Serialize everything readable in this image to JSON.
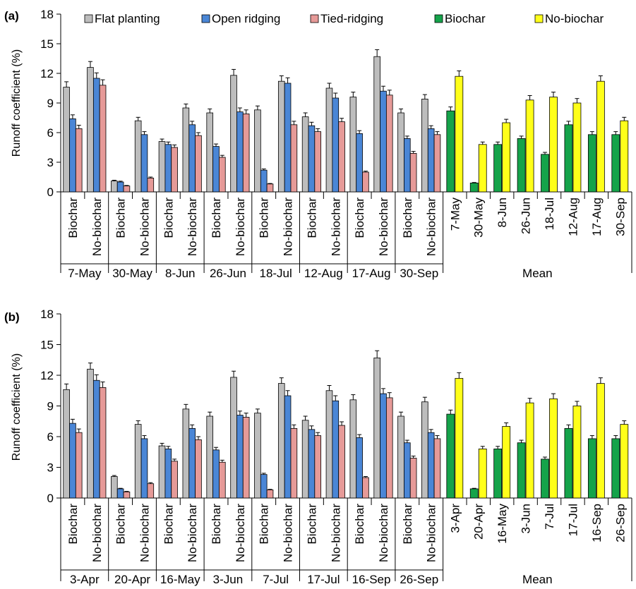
{
  "figure": {
    "legend": [
      {
        "label": "Flat planting",
        "color": "#bdbdbd"
      },
      {
        "label": "Open ridging",
        "color": "#4a86d6"
      },
      {
        "label": "Tied-ridging",
        "color": "#e69a98"
      },
      {
        "label": "Biochar",
        "color": "#15a34a"
      },
      {
        "label": "No-biochar",
        "color": "#ffff1a"
      }
    ]
  },
  "chart_data": [
    {
      "panel_label": "(a)",
      "type": "bar",
      "ylabel": "Runoff coefficient (%)",
      "ylim": [
        0,
        18
      ],
      "yticks": [
        0,
        3,
        6,
        9,
        12,
        15,
        18
      ],
      "treatment_series": [
        "Flat planting",
        "Open ridging",
        "Tied-ridging"
      ],
      "groups": [
        {
          "label": "7-May",
          "subgroups": [
            {
              "label": "Biochar",
              "values": [
                10.6,
                7.4,
                6.4
              ],
              "errors": [
                0.55,
                0.4,
                0.35
              ]
            },
            {
              "label": "No-biochar",
              "values": [
                12.6,
                11.5,
                10.8
              ],
              "errors": [
                0.6,
                0.55,
                0.55
              ]
            }
          ]
        },
        {
          "label": "30-May",
          "subgroups": [
            {
              "label": "Biochar",
              "values": [
                1.1,
                1.0,
                0.6
              ],
              "errors": [
                0.08,
                0.08,
                0.05
              ]
            },
            {
              "label": "No-biochar",
              "values": [
                7.2,
                5.8,
                1.4
              ],
              "errors": [
                0.35,
                0.3,
                0.1
              ]
            }
          ]
        },
        {
          "label": "8-Jun",
          "subgroups": [
            {
              "label": "Biochar",
              "values": [
                5.1,
                4.8,
                4.5
              ],
              "errors": [
                0.25,
                0.25,
                0.25
              ]
            },
            {
              "label": "No-biochar",
              "values": [
                8.5,
                6.8,
                5.7
              ],
              "errors": [
                0.4,
                0.35,
                0.3
              ]
            }
          ]
        },
        {
          "label": "26-Jun",
          "subgroups": [
            {
              "label": "Biochar",
              "values": [
                8.0,
                4.6,
                3.5
              ],
              "errors": [
                0.4,
                0.25,
                0.2
              ]
            },
            {
              "label": "No-biochar",
              "values": [
                11.8,
                8.1,
                7.9
              ],
              "errors": [
                0.6,
                0.4,
                0.4
              ]
            }
          ]
        },
        {
          "label": "18-Jul",
          "subgroups": [
            {
              "label": "Biochar",
              "values": [
                8.3,
                2.2,
                0.8
              ],
              "errors": [
                0.4,
                0.12,
                0.05
              ]
            },
            {
              "label": "No-biochar",
              "values": [
                11.2,
                11.0,
                6.8
              ],
              "errors": [
                0.55,
                0.55,
                0.35
              ]
            }
          ]
        },
        {
          "label": "12-Aug",
          "subgroups": [
            {
              "label": "Biochar",
              "values": [
                7.6,
                6.7,
                6.1
              ],
              "errors": [
                0.4,
                0.35,
                0.3
              ]
            },
            {
              "label": "No-biochar",
              "values": [
                10.5,
                9.5,
                7.1
              ],
              "errors": [
                0.5,
                0.5,
                0.35
              ]
            }
          ]
        },
        {
          "label": "17-Aug",
          "subgroups": [
            {
              "label": "Biochar",
              "values": [
                9.6,
                5.9,
                2.0
              ],
              "errors": [
                0.5,
                0.3,
                0.1
              ]
            },
            {
              "label": "No-biochar",
              "values": [
                13.7,
                10.2,
                9.8
              ],
              "errors": [
                0.7,
                0.5,
                0.5
              ]
            }
          ]
        },
        {
          "label": "30-Sep",
          "subgroups": [
            {
              "label": "Biochar",
              "values": [
                8.0,
                5.4,
                3.9
              ],
              "errors": [
                0.4,
                0.25,
                0.2
              ]
            },
            {
              "label": "No-biochar",
              "values": [
                9.4,
                6.4,
                5.8
              ],
              "errors": [
                0.45,
                0.3,
                0.3
              ]
            }
          ]
        }
      ],
      "mean": {
        "label": "Mean",
        "series": [
          "Biochar",
          "No-biochar"
        ],
        "categories": [
          "7-May",
          "30-May",
          "8-Jun",
          "26-Jun",
          "18-Jul",
          "12-Aug",
          "17-Aug",
          "30-Sep"
        ],
        "biochar": [
          8.2,
          0.9,
          4.8,
          5.4,
          3.8,
          6.8,
          5.8,
          5.8
        ],
        "biochar_errors": [
          0.4,
          0.05,
          0.25,
          0.25,
          0.2,
          0.35,
          0.3,
          0.3
        ],
        "no_biochar": [
          11.7,
          4.8,
          7.0,
          9.3,
          9.6,
          9.0,
          11.2,
          7.2
        ],
        "no_biochar_errors": [
          0.55,
          0.25,
          0.35,
          0.45,
          0.5,
          0.45,
          0.55,
          0.35
        ]
      }
    },
    {
      "panel_label": "(b)",
      "type": "bar",
      "ylabel": "Runoff coefficient (%)",
      "ylim": [
        0,
        18
      ],
      "yticks": [
        0,
        3,
        6,
        9,
        12,
        15,
        18
      ],
      "treatment_series": [
        "Flat planting",
        "Open ridging",
        "Tied-ridging"
      ],
      "groups": [
        {
          "label": "3-Apr",
          "subgroups": [
            {
              "label": "Biochar",
              "values": [
                10.6,
                7.3,
                6.4
              ],
              "errors": [
                0.55,
                0.4,
                0.35
              ]
            },
            {
              "label": "No-biochar",
              "values": [
                12.6,
                11.5,
                10.8
              ],
              "errors": [
                0.6,
                0.55,
                0.55
              ]
            }
          ]
        },
        {
          "label": "20-Apr",
          "subgroups": [
            {
              "label": "Biochar",
              "values": [
                2.1,
                0.9,
                0.6
              ],
              "errors": [
                0.1,
                0.05,
                0.05
              ]
            },
            {
              "label": "No-biochar",
              "values": [
                7.2,
                5.8,
                1.4
              ],
              "errors": [
                0.35,
                0.3,
                0.1
              ]
            }
          ]
        },
        {
          "label": "16-May",
          "subgroups": [
            {
              "label": "Biochar",
              "values": [
                5.1,
                4.8,
                3.6
              ],
              "errors": [
                0.25,
                0.25,
                0.2
              ]
            },
            {
              "label": "No-biochar",
              "values": [
                8.7,
                6.8,
                5.7
              ],
              "errors": [
                0.45,
                0.35,
                0.3
              ]
            }
          ]
        },
        {
          "label": "3-Jun",
          "subgroups": [
            {
              "label": "Biochar",
              "values": [
                8.0,
                4.7,
                3.5
              ],
              "errors": [
                0.4,
                0.25,
                0.2
              ]
            },
            {
              "label": "No-biochar",
              "values": [
                11.8,
                8.1,
                7.9
              ],
              "errors": [
                0.6,
                0.4,
                0.4
              ]
            }
          ]
        },
        {
          "label": "7-Jul",
          "subgroups": [
            {
              "label": "Biochar",
              "values": [
                8.3,
                2.3,
                0.8
              ],
              "errors": [
                0.4,
                0.12,
                0.05
              ]
            },
            {
              "label": "No-biochar",
              "values": [
                11.2,
                10.0,
                6.8
              ],
              "errors": [
                0.55,
                0.5,
                0.35
              ]
            }
          ]
        },
        {
          "label": "17-Jul",
          "subgroups": [
            {
              "label": "Biochar",
              "values": [
                7.6,
                6.7,
                6.1
              ],
              "errors": [
                0.4,
                0.35,
                0.3
              ]
            },
            {
              "label": "No-biochar",
              "values": [
                10.5,
                9.5,
                7.1
              ],
              "errors": [
                0.5,
                0.5,
                0.35
              ]
            }
          ]
        },
        {
          "label": "16-Sep",
          "subgroups": [
            {
              "label": "Biochar",
              "values": [
                9.6,
                5.9,
                2.0
              ],
              "errors": [
                0.5,
                0.3,
                0.1
              ]
            },
            {
              "label": "No-biochar",
              "values": [
                13.7,
                10.2,
                9.8
              ],
              "errors": [
                0.7,
                0.5,
                0.5
              ]
            }
          ]
        },
        {
          "label": "26-Sep",
          "subgroups": [
            {
              "label": "Biochar",
              "values": [
                8.0,
                5.4,
                3.9
              ],
              "errors": [
                0.4,
                0.25,
                0.2
              ]
            },
            {
              "label": "No-biochar",
              "values": [
                9.4,
                6.4,
                5.8
              ],
              "errors": [
                0.45,
                0.3,
                0.3
              ]
            }
          ]
        }
      ],
      "mean": {
        "label": "Mean",
        "series": [
          "Biochar",
          "No-biochar"
        ],
        "categories": [
          "3-Apr",
          "20-Apr",
          "16-May",
          "3-Jun",
          "7-Jul",
          "17-Jul",
          "16-Sep",
          "26-Sep"
        ],
        "biochar": [
          8.2,
          0.9,
          4.8,
          5.4,
          3.8,
          6.8,
          5.8,
          5.8
        ],
        "biochar_errors": [
          0.4,
          0.05,
          0.25,
          0.25,
          0.2,
          0.35,
          0.3,
          0.3
        ],
        "no_biochar": [
          11.7,
          4.8,
          7.0,
          9.3,
          9.7,
          9.0,
          11.2,
          7.2
        ],
        "no_biochar_errors": [
          0.55,
          0.25,
          0.35,
          0.45,
          0.5,
          0.45,
          0.55,
          0.35
        ]
      }
    }
  ]
}
